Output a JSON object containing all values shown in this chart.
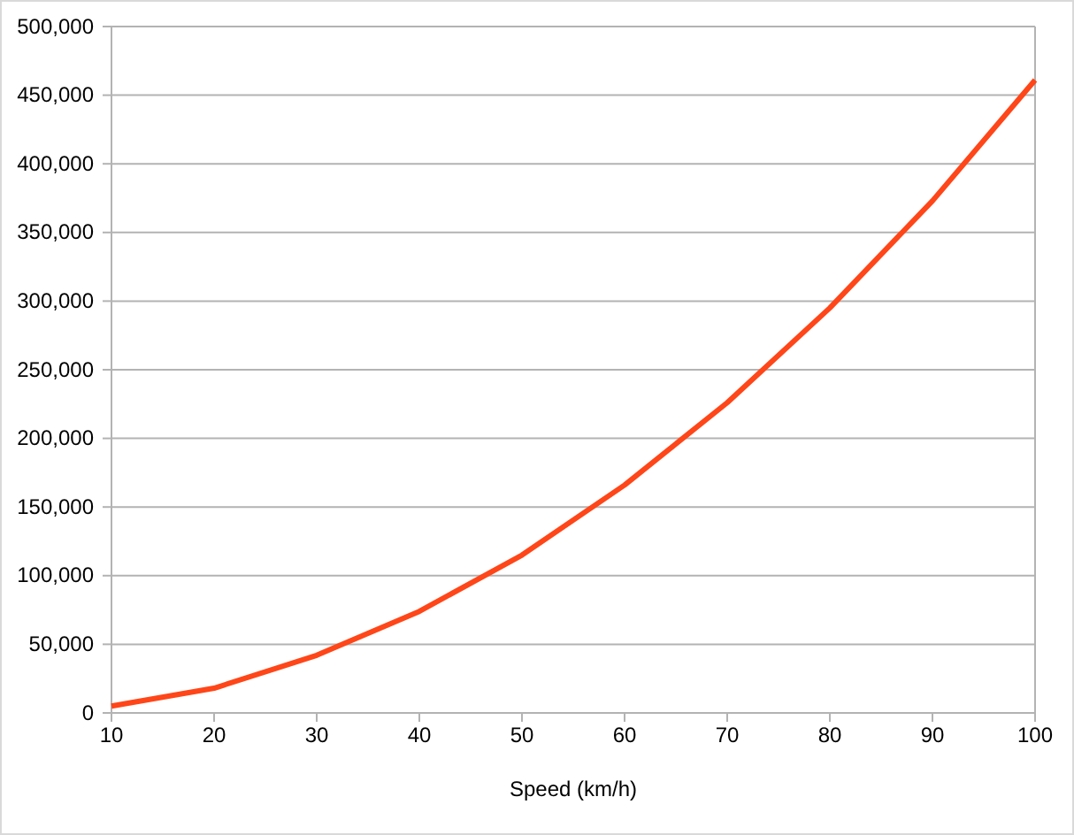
{
  "chart_data": {
    "type": "line",
    "xlabel": "Speed (km/h)",
    "x": [
      10,
      20,
      30,
      40,
      50,
      60,
      70,
      80,
      90,
      100
    ],
    "series": [
      {
        "color": "#ff4619",
        "values": [
          5000,
          18000,
          42000,
          74000,
          115000,
          166000,
          226000,
          295000,
          373000,
          461000
        ]
      }
    ],
    "xlim": [
      10,
      100
    ],
    "xticks": [
      10,
      20,
      30,
      40,
      50,
      60,
      70,
      80,
      90,
      100
    ],
    "ylim": [
      0,
      500000
    ],
    "yticks": [
      {
        "value": 0,
        "label": "0"
      },
      {
        "value": 50000,
        "label": "50,000"
      },
      {
        "value": 100000,
        "label": "100,000"
      },
      {
        "value": 150000,
        "label": "150,000"
      },
      {
        "value": 200000,
        "label": "200,000"
      },
      {
        "value": 250000,
        "label": "250,000"
      },
      {
        "value": 300000,
        "label": "300,000"
      },
      {
        "value": 350000,
        "label": "350,000"
      },
      {
        "value": 400000,
        "label": "400,000"
      },
      {
        "value": 450000,
        "label": "450,000"
      },
      {
        "value": 500000,
        "label": "500,000"
      }
    ],
    "grid": "y",
    "marker": "none",
    "line_style": "solid"
  }
}
